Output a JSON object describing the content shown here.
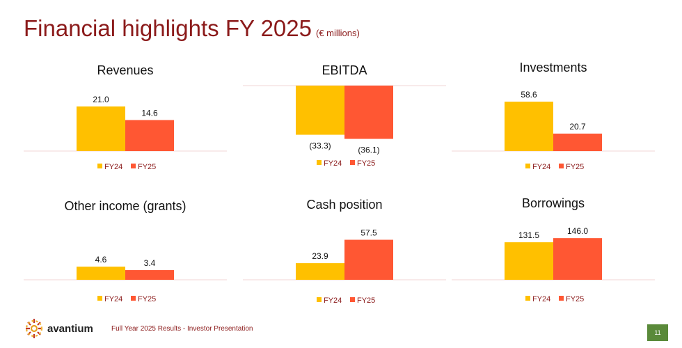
{
  "title": "Financial highlights FY 2025",
  "title_unit": "(€ millions)",
  "colors": {
    "fy24": "#ffc000",
    "fy25": "#ff5733",
    "title": "#8b1a1a",
    "axis": "#f2d6d6"
  },
  "chart_data": [
    {
      "type": "bar",
      "title": "Revenues",
      "categories": [
        "FY24",
        "FY25"
      ],
      "values": [
        21.0,
        14.6
      ],
      "labels": [
        "21.0",
        "14.6"
      ],
      "legend": [
        "FY24",
        "FY25"
      ]
    },
    {
      "type": "bar",
      "title": "EBITDA",
      "categories": [
        "FY24",
        "FY25"
      ],
      "values": [
        -33.3,
        -36.1
      ],
      "labels": [
        "(33.3)",
        "(36.1)"
      ],
      "legend": [
        "FY24",
        "FY25"
      ]
    },
    {
      "type": "bar",
      "title": "Investments",
      "categories": [
        "FY24",
        "FY25"
      ],
      "values": [
        58.6,
        20.7
      ],
      "labels": [
        "58.6",
        "20.7"
      ],
      "legend": [
        "FY24",
        "FY25"
      ]
    },
    {
      "type": "bar",
      "title": "Other income (grants)",
      "categories": [
        "FY24",
        "FY25"
      ],
      "values": [
        4.6,
        3.4
      ],
      "labels": [
        "4.6",
        "3.4"
      ],
      "legend": [
        "FY24",
        "FY25"
      ]
    },
    {
      "type": "bar",
      "title": "Cash position",
      "categories": [
        "FY24",
        "FY25"
      ],
      "values": [
        23.9,
        57.5
      ],
      "labels": [
        "23.9",
        "57.5"
      ],
      "legend": [
        "FY24",
        "FY25"
      ]
    },
    {
      "type": "bar",
      "title": "Borrowings",
      "categories": [
        "FY24",
        "FY25"
      ],
      "values": [
        131.5,
        146.0
      ],
      "labels": [
        "131.5",
        "146.0"
      ],
      "legend": [
        "FY24",
        "FY25"
      ]
    }
  ],
  "footer": {
    "logo_text": "avantium",
    "presentation": "Full Year 2025 Results - Investor Presentation",
    "page_number": "11"
  }
}
